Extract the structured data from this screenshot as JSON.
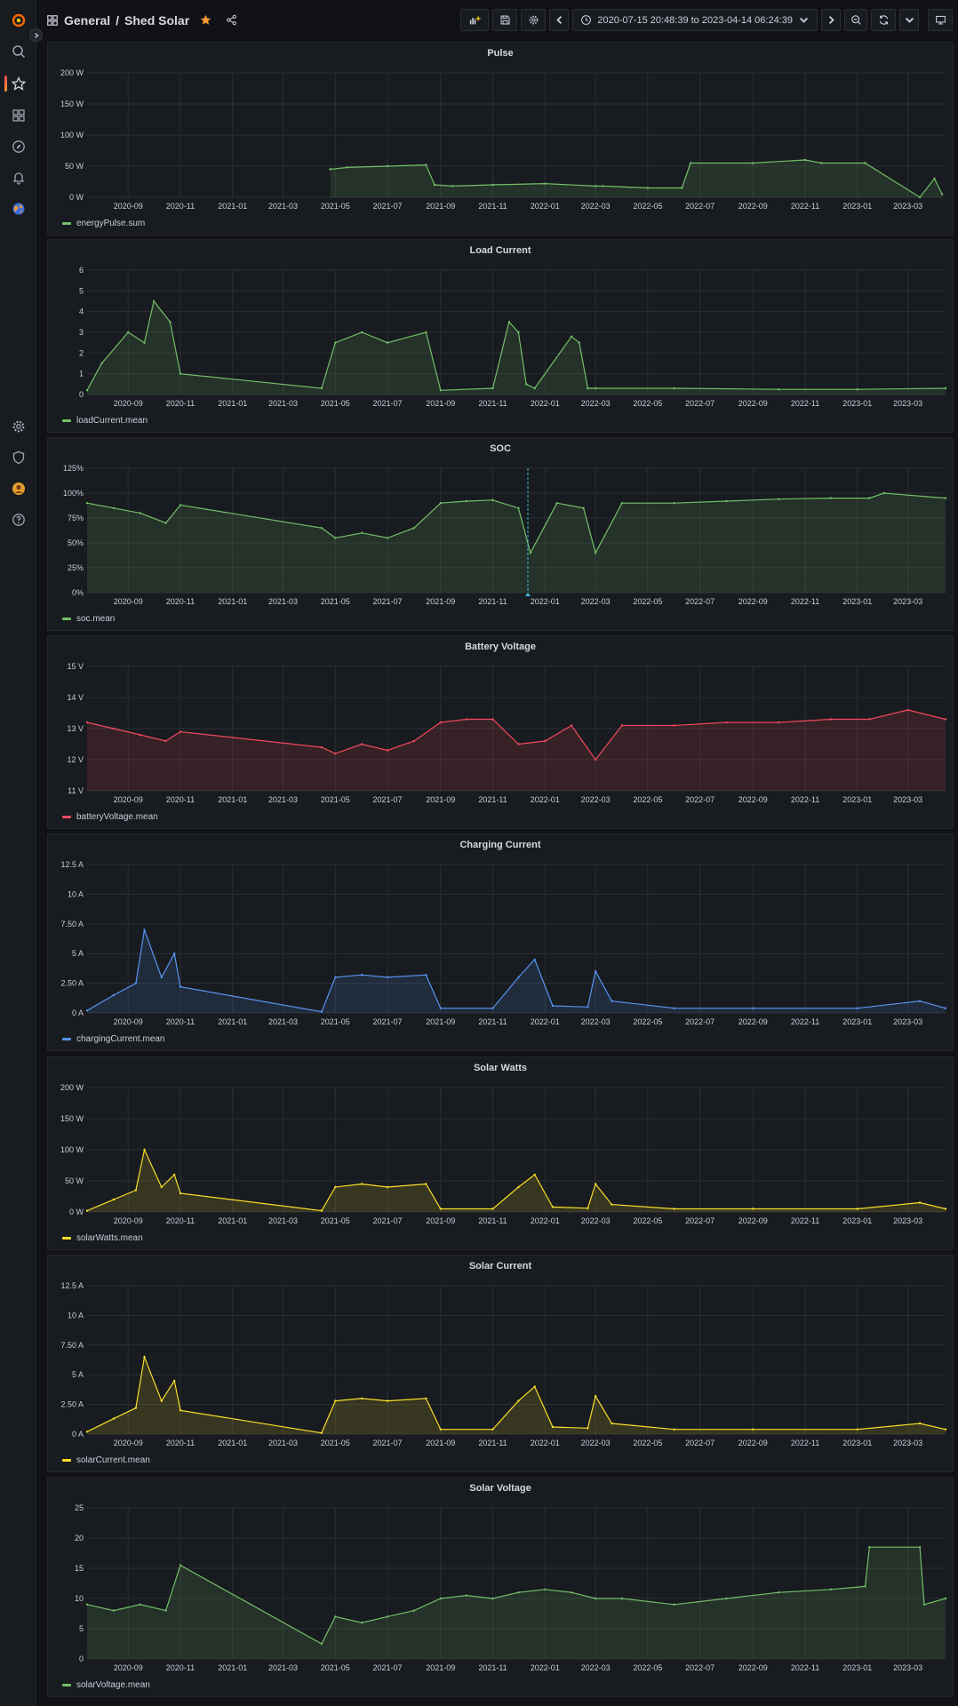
{
  "header": {
    "folder": "General",
    "separator": "/",
    "dashboard": "Shed Solar",
    "time_range": "2020-07-15 20:48:39 to 2023-04-14 06:24:39"
  },
  "colors": {
    "green": "#73bf69",
    "red": "#f2495c",
    "blue": "#5794f2",
    "yellow": "#fade2a",
    "star": "#ff9830"
  },
  "sidemenu": [
    "grafana-logo-icon",
    "search-icon",
    "starred-icon",
    "dashboards-icon",
    "explore-icon",
    "alerting-icon",
    "earth-icon",
    "settings-icon",
    "shield-icon",
    "user-avatar-icon",
    "help-icon"
  ],
  "x_ticks": [
    "2020-09",
    "2020-11",
    "2021-01",
    "2021-03",
    "2021-05",
    "2021-07",
    "2021-09",
    "2021-11",
    "2022-01",
    "2022-03",
    "2022-05",
    "2022-07",
    "2022-09",
    "2022-11",
    "2023-01",
    "2023-03"
  ],
  "panels": [
    {
      "title": "Pulse",
      "series": "energyPulse.sum",
      "color": "#73bf69",
      "y_ticks": [
        "0 W",
        "50 W",
        "100 W",
        "150 W",
        "200 W"
      ],
      "ymax": 200
    },
    {
      "title": "Load Current",
      "series": "loadCurrent.mean",
      "color": "#73bf69",
      "y_ticks": [
        "0",
        "1",
        "2",
        "3",
        "4",
        "5",
        "6"
      ],
      "ymax": 6
    },
    {
      "title": "SOC",
      "series": "soc.mean",
      "color": "#73bf69",
      "y_ticks": [
        "0%",
        "25%",
        "50%",
        "75%",
        "100%",
        "125%"
      ],
      "ymax": 125
    },
    {
      "title": "Battery Voltage",
      "series": "batteryVoltage.mean",
      "color": "#f2495c",
      "y_ticks": [
        "11 V",
        "12 V",
        "13 V",
        "14 V",
        "15 V"
      ],
      "ymin": 11,
      "ymax": 15
    },
    {
      "title": "Charging Current",
      "series": "chargingCurrent.mean",
      "color": "#5794f2",
      "y_ticks": [
        "0 A",
        "2.50 A",
        "5 A",
        "7.50 A",
        "10 A",
        "12.5 A"
      ],
      "ymax": 12.5
    },
    {
      "title": "Solar Watts",
      "series": "solarWatts.mean",
      "color": "#fade2a",
      "y_ticks": [
        "0 W",
        "50 W",
        "100 W",
        "150 W",
        "200 W"
      ],
      "ymax": 200
    },
    {
      "title": "Solar Current",
      "series": "solarCurrent.mean",
      "color": "#fade2a",
      "y_ticks": [
        "0 A",
        "2.50 A",
        "5 A",
        "7.50 A",
        "10 A",
        "12.5 A"
      ],
      "ymax": 12.5
    },
    {
      "title": "Solar Voltage",
      "series": "solarVoltage.mean",
      "color": "#73bf69",
      "y_ticks": [
        "0",
        "5",
        "10",
        "15",
        "20",
        "25"
      ],
      "ymax": 25
    }
  ],
  "chart_data": [
    {
      "type": "area",
      "title": "Pulse",
      "ylim": [
        0,
        200
      ],
      "series": [
        {
          "name": "energyPulse.sum",
          "x": [
            "2021-04-25",
            "2021-05-15",
            "2021-07-01",
            "2021-08-15",
            "2021-08-25",
            "2021-09-15",
            "2021-11-01",
            "2022-01-01",
            "2022-03-01",
            "2022-03-10",
            "2022-05-01",
            "2022-06-10",
            "2022-06-20",
            "2022-09-01",
            "2022-11-01",
            "2022-11-20",
            "2023-01-10",
            "2023-03-15",
            "2023-04-01",
            "2023-04-10"
          ],
          "values": [
            45,
            48,
            50,
            52,
            20,
            18,
            20,
            22,
            18,
            18,
            15,
            15,
            55,
            55,
            60,
            55,
            55,
            0,
            30,
            5
          ]
        }
      ]
    },
    {
      "type": "area",
      "title": "Load Current",
      "ylim": [
        0,
        6
      ],
      "series": [
        {
          "name": "loadCurrent.mean",
          "x": [
            "2020-07-15",
            "2020-08-01",
            "2020-09-01",
            "2020-09-20",
            "2020-10-01",
            "2020-10-20",
            "2020-11-01",
            "2021-04-15",
            "2021-05-01",
            "2021-06-01",
            "2021-07-01",
            "2021-08-15",
            "2021-09-01",
            "2021-11-01",
            "2021-11-20",
            "2021-12-01",
            "2021-12-10",
            "2021-12-20",
            "2022-02-01",
            "2022-02-10",
            "2022-02-20",
            "2022-03-01",
            "2022-06-01",
            "2022-10-01",
            "2023-01-01",
            "2023-04-14"
          ],
          "values": [
            0.2,
            1.5,
            3.0,
            2.5,
            4.5,
            3.5,
            1.0,
            0.3,
            2.5,
            3.0,
            2.5,
            3.0,
            0.2,
            0.3,
            3.5,
            3.0,
            0.5,
            0.3,
            2.8,
            2.5,
            0.3,
            0.3,
            0.3,
            0.25,
            0.25,
            0.3
          ]
        }
      ]
    },
    {
      "type": "area",
      "title": "SOC",
      "ylim": [
        0,
        125
      ],
      "series": [
        {
          "name": "soc.mean",
          "x": [
            "2020-07-15",
            "2020-08-15",
            "2020-09-15",
            "2020-10-15",
            "2020-11-01",
            "2021-04-15",
            "2021-05-01",
            "2021-06-01",
            "2021-07-01",
            "2021-08-01",
            "2021-09-01",
            "2021-10-01",
            "2021-11-01",
            "2021-12-01",
            "2021-12-15",
            "2022-01-15",
            "2022-02-15",
            "2022-03-01",
            "2022-04-01",
            "2022-06-01",
            "2022-08-01",
            "2022-10-01",
            "2022-12-01",
            "2023-01-15",
            "2023-02-01",
            "2023-04-14"
          ],
          "values": [
            90,
            85,
            80,
            70,
            88,
            65,
            55,
            60,
            55,
            65,
            90,
            92,
            93,
            85,
            40,
            90,
            85,
            40,
            90,
            90,
            92,
            94,
            95,
            95,
            100,
            95
          ]
        }
      ]
    },
    {
      "type": "area",
      "title": "Battery Voltage",
      "ylim": [
        11,
        15
      ],
      "series": [
        {
          "name": "batteryVoltage.mean",
          "x": [
            "2020-07-15",
            "2020-08-15",
            "2020-09-15",
            "2020-10-15",
            "2020-11-01",
            "2021-04-15",
            "2021-05-01",
            "2021-06-01",
            "2021-07-01",
            "2021-08-01",
            "2021-09-01",
            "2021-10-01",
            "2021-11-01",
            "2021-12-01",
            "2022-01-01",
            "2022-02-01",
            "2022-03-01",
            "2022-04-01",
            "2022-06-01",
            "2022-08-01",
            "2022-10-01",
            "2022-12-01",
            "2023-01-15",
            "2023-03-01",
            "2023-04-14"
          ],
          "values": [
            13.2,
            13.0,
            12.8,
            12.6,
            12.9,
            12.4,
            12.2,
            12.5,
            12.3,
            12.6,
            13.2,
            13.3,
            13.3,
            12.5,
            12.6,
            13.1,
            12.0,
            13.1,
            13.1,
            13.2,
            13.2,
            13.3,
            13.3,
            13.6,
            13.3
          ]
        }
      ]
    },
    {
      "type": "area",
      "title": "Charging Current",
      "ylim": [
        0,
        12.5
      ],
      "series": [
        {
          "name": "chargingCurrent.mean",
          "x": [
            "2020-07-15",
            "2020-08-15",
            "2020-09-10",
            "2020-09-20",
            "2020-10-10",
            "2020-10-25",
            "2020-11-01",
            "2021-04-15",
            "2021-05-01",
            "2021-06-01",
            "2021-07-01",
            "2021-08-15",
            "2021-09-01",
            "2021-11-01",
            "2021-12-01",
            "2021-12-20",
            "2022-01-10",
            "2022-02-20",
            "2022-03-01",
            "2022-03-20",
            "2022-06-01",
            "2022-09-01",
            "2023-01-01",
            "2023-03-15",
            "2023-04-14"
          ],
          "values": [
            0.2,
            1.5,
            2.5,
            7.0,
            3.0,
            5.0,
            2.2,
            0.1,
            3.0,
            3.2,
            3.0,
            3.2,
            0.4,
            0.4,
            3.0,
            4.5,
            0.6,
            0.5,
            3.5,
            1.0,
            0.4,
            0.4,
            0.4,
            1.0,
            0.4
          ]
        }
      ]
    },
    {
      "type": "area",
      "title": "Solar Watts",
      "ylim": [
        0,
        200
      ],
      "series": [
        {
          "name": "solarWatts.mean",
          "x": [
            "2020-07-15",
            "2020-08-15",
            "2020-09-10",
            "2020-09-20",
            "2020-10-10",
            "2020-10-25",
            "2020-11-01",
            "2021-04-15",
            "2021-05-01",
            "2021-06-01",
            "2021-07-01",
            "2021-08-15",
            "2021-09-01",
            "2021-11-01",
            "2021-12-01",
            "2021-12-20",
            "2022-01-10",
            "2022-02-20",
            "2022-03-01",
            "2022-03-20",
            "2022-06-01",
            "2022-09-01",
            "2023-01-01",
            "2023-03-15",
            "2023-04-14"
          ],
          "values": [
            2,
            20,
            35,
            100,
            40,
            60,
            30,
            2,
            40,
            45,
            40,
            45,
            5,
            5,
            40,
            60,
            8,
            6,
            45,
            12,
            5,
            5,
            5,
            15,
            5
          ]
        }
      ]
    },
    {
      "type": "area",
      "title": "Solar Current",
      "ylim": [
        0,
        12.5
      ],
      "series": [
        {
          "name": "solarCurrent.mean",
          "x": [
            "2020-07-15",
            "2020-08-15",
            "2020-09-10",
            "2020-09-20",
            "2020-10-10",
            "2020-10-25",
            "2020-11-01",
            "2021-04-15",
            "2021-05-01",
            "2021-06-01",
            "2021-07-01",
            "2021-08-15",
            "2021-09-01",
            "2021-11-01",
            "2021-12-01",
            "2021-12-20",
            "2022-01-10",
            "2022-02-20",
            "2022-03-01",
            "2022-03-20",
            "2022-06-01",
            "2022-09-01",
            "2023-01-01",
            "2023-03-15",
            "2023-04-14"
          ],
          "values": [
            0.2,
            1.3,
            2.2,
            6.5,
            2.8,
            4.5,
            2.0,
            0.1,
            2.8,
            3.0,
            2.8,
            3.0,
            0.4,
            0.4,
            2.8,
            4.0,
            0.6,
            0.5,
            3.2,
            0.9,
            0.4,
            0.4,
            0.4,
            0.9,
            0.4
          ]
        }
      ]
    },
    {
      "type": "area",
      "title": "Solar Voltage",
      "ylim": [
        0,
        25
      ],
      "series": [
        {
          "name": "solarVoltage.mean",
          "x": [
            "2020-07-15",
            "2020-08-15",
            "2020-09-15",
            "2020-10-15",
            "2020-11-01",
            "2021-04-15",
            "2021-05-01",
            "2021-06-01",
            "2021-07-01",
            "2021-08-01",
            "2021-09-01",
            "2021-10-01",
            "2021-11-01",
            "2021-12-01",
            "2022-01-01",
            "2022-02-01",
            "2022-03-01",
            "2022-04-01",
            "2022-06-01",
            "2022-08-01",
            "2022-10-01",
            "2022-12-01",
            "2023-01-10",
            "2023-01-15",
            "2023-03-15",
            "2023-03-20",
            "2023-04-14"
          ],
          "values": [
            9,
            8,
            9,
            8,
            15.5,
            2.5,
            7,
            6,
            7,
            8,
            10,
            10.5,
            10,
            11,
            11.5,
            11,
            10,
            10,
            9,
            10,
            11,
            11.5,
            12,
            18.5,
            18.5,
            9,
            10
          ]
        }
      ]
    }
  ]
}
